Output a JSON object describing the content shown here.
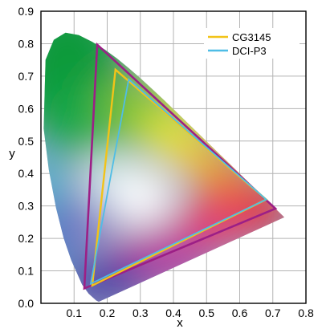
{
  "chart_data": {
    "type": "line",
    "title": "",
    "xlabel": "x",
    "ylabel": "y",
    "xlim": [
      0,
      0.8
    ],
    "ylim": [
      0,
      0.9
    ],
    "x_ticks": [
      "0.1",
      "0.2",
      "0.3",
      "0.4",
      "0.5",
      "0.6",
      "0.7",
      "0.8"
    ],
    "y_ticks": [
      "0.0",
      "0.1",
      "0.2",
      "0.3",
      "0.4",
      "0.5",
      "0.6",
      "0.7",
      "0.8",
      "0.9"
    ],
    "grid": true,
    "legend": "top-right",
    "locus": [
      {
        "x": 0.175,
        "y": 0.005
      },
      {
        "x": 0.1741,
        "y": 0.005
      },
      {
        "x": 0.1666,
        "y": 0.0089
      },
      {
        "x": 0.144,
        "y": 0.0297
      },
      {
        "x": 0.1241,
        "y": 0.0578
      },
      {
        "x": 0.0913,
        "y": 0.1327
      },
      {
        "x": 0.0687,
        "y": 0.2007
      },
      {
        "x": 0.0454,
        "y": 0.295
      },
      {
        "x": 0.0235,
        "y": 0.4127
      },
      {
        "x": 0.0082,
        "y": 0.5384
      },
      {
        "x": 0.0139,
        "y": 0.7502
      },
      {
        "x": 0.0389,
        "y": 0.812
      },
      {
        "x": 0.0743,
        "y": 0.8338
      },
      {
        "x": 0.1142,
        "y": 0.8262
      },
      {
        "x": 0.1547,
        "y": 0.8059
      },
      {
        "x": 0.1929,
        "y": 0.7816
      },
      {
        "x": 0.2296,
        "y": 0.7543
      },
      {
        "x": 0.2658,
        "y": 0.7243
      },
      {
        "x": 0.3016,
        "y": 0.6923
      },
      {
        "x": 0.3373,
        "y": 0.6589
      },
      {
        "x": 0.3731,
        "y": 0.6245
      },
      {
        "x": 0.4087,
        "y": 0.5896
      },
      {
        "x": 0.4441,
        "y": 0.5547
      },
      {
        "x": 0.4788,
        "y": 0.5202
      },
      {
        "x": 0.5125,
        "y": 0.4866
      },
      {
        "x": 0.5448,
        "y": 0.4544
      },
      {
        "x": 0.5752,
        "y": 0.4242
      },
      {
        "x": 0.6029,
        "y": 0.3965
      },
      {
        "x": 0.627,
        "y": 0.3725
      },
      {
        "x": 0.6482,
        "y": 0.3514
      },
      {
        "x": 0.6658,
        "y": 0.334
      },
      {
        "x": 0.6801,
        "y": 0.3197
      },
      {
        "x": 0.6915,
        "y": 0.3083
      },
      {
        "x": 0.7006,
        "y": 0.2993
      },
      {
        "x": 0.7079,
        "y": 0.292
      },
      {
        "x": 0.714,
        "y": 0.2859
      },
      {
        "x": 0.7347,
        "y": 0.2653
      }
    ],
    "series": [
      {
        "name": "",
        "color": "#9c1f86",
        "values": [
          {
            "x": 0.708,
            "y": 0.292
          },
          {
            "x": 0.17,
            "y": 0.797
          },
          {
            "x": 0.131,
            "y": 0.046
          }
        ]
      },
      {
        "name": "CG3145",
        "color": "#f2c318",
        "values": [
          {
            "x": 0.68,
            "y": 0.32
          },
          {
            "x": 0.225,
            "y": 0.72
          },
          {
            "x": 0.155,
            "y": 0.055
          }
        ]
      },
      {
        "name": "DCI-P3",
        "color": "#4fbde6",
        "values": [
          {
            "x": 0.68,
            "y": 0.32
          },
          {
            "x": 0.265,
            "y": 0.69
          },
          {
            "x": 0.15,
            "y": 0.06
          }
        ]
      }
    ]
  }
}
